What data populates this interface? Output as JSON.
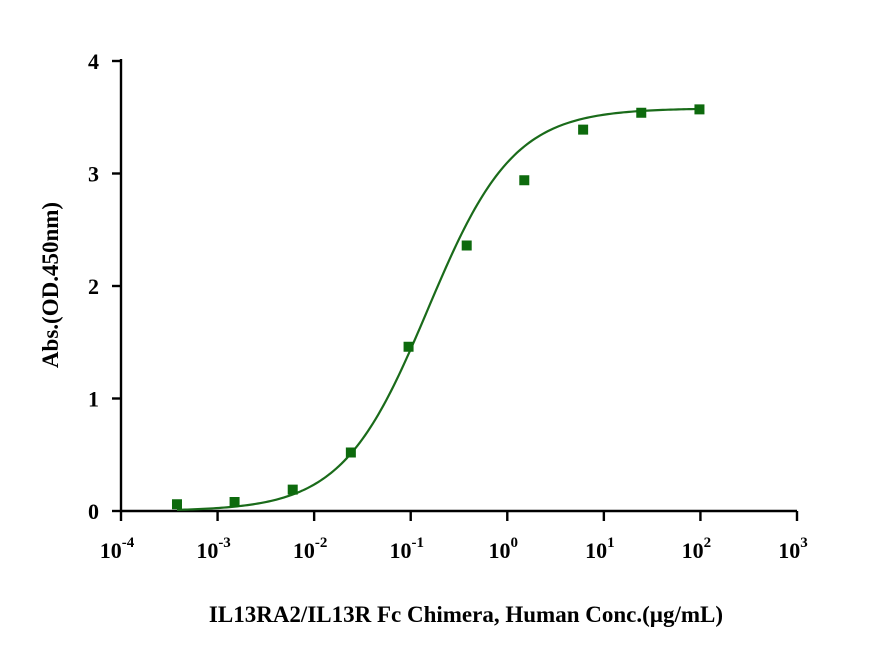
{
  "chart_data": {
    "type": "scatter",
    "xlabel": "IL13RA2/IL13R Fc Chimera, Human Conc.(µg/mL)",
    "ylabel": "Abs.(OD.450nm)",
    "x_scale": "log",
    "xlim": [
      0.0001,
      1000
    ],
    "ylim": [
      0,
      4
    ],
    "x_ticks": [
      {
        "value": 0.0001,
        "base": "10",
        "exp": "-4"
      },
      {
        "value": 0.001,
        "base": "10",
        "exp": "-3"
      },
      {
        "value": 0.01,
        "base": "10",
        "exp": "-2"
      },
      {
        "value": 0.1,
        "base": "10",
        "exp": "-1"
      },
      {
        "value": 1,
        "base": "10",
        "exp": "0"
      },
      {
        "value": 10,
        "base": "10",
        "exp": "1"
      },
      {
        "value": 100,
        "base": "10",
        "exp": "2"
      },
      {
        "value": 1000,
        "base": "10",
        "exp": "3"
      }
    ],
    "y_ticks": [
      "0",
      "1",
      "2",
      "3",
      "4"
    ],
    "grid": false,
    "series": [
      {
        "color": "#0d6a0d",
        "marker": "square",
        "fit": "4PL",
        "points": [
          {
            "x": 0.00038,
            "y": 0.06
          },
          {
            "x": 0.0015,
            "y": 0.08
          },
          {
            "x": 0.006,
            "y": 0.19
          },
          {
            "x": 0.024,
            "y": 0.52
          },
          {
            "x": 0.095,
            "y": 1.46
          },
          {
            "x": 0.38,
            "y": 2.36
          },
          {
            "x": 1.5,
            "y": 2.94
          },
          {
            "x": 6.1,
            "y": 3.39
          },
          {
            "x": 24.4,
            "y": 3.54
          },
          {
            "x": 97.7,
            "y": 3.57
          }
        ]
      }
    ]
  }
}
